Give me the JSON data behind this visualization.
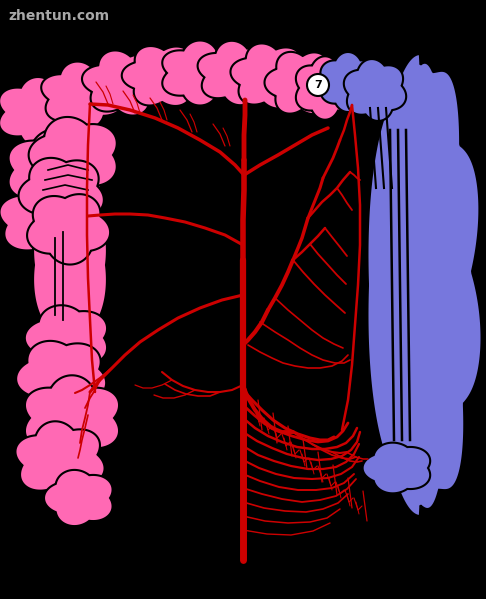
{
  "background_color": "#000000",
  "pink_color": "#FF69B4",
  "blue_color": "#7777DD",
  "red_color": "#CC0000",
  "black_outline": "#000000",
  "white_color": "#FFFFFF",
  "watermark": "zhentun.com",
  "watermark_color": "#BBBBBB",
  "fig_width": 4.86,
  "fig_height": 5.99,
  "dpi": 100
}
